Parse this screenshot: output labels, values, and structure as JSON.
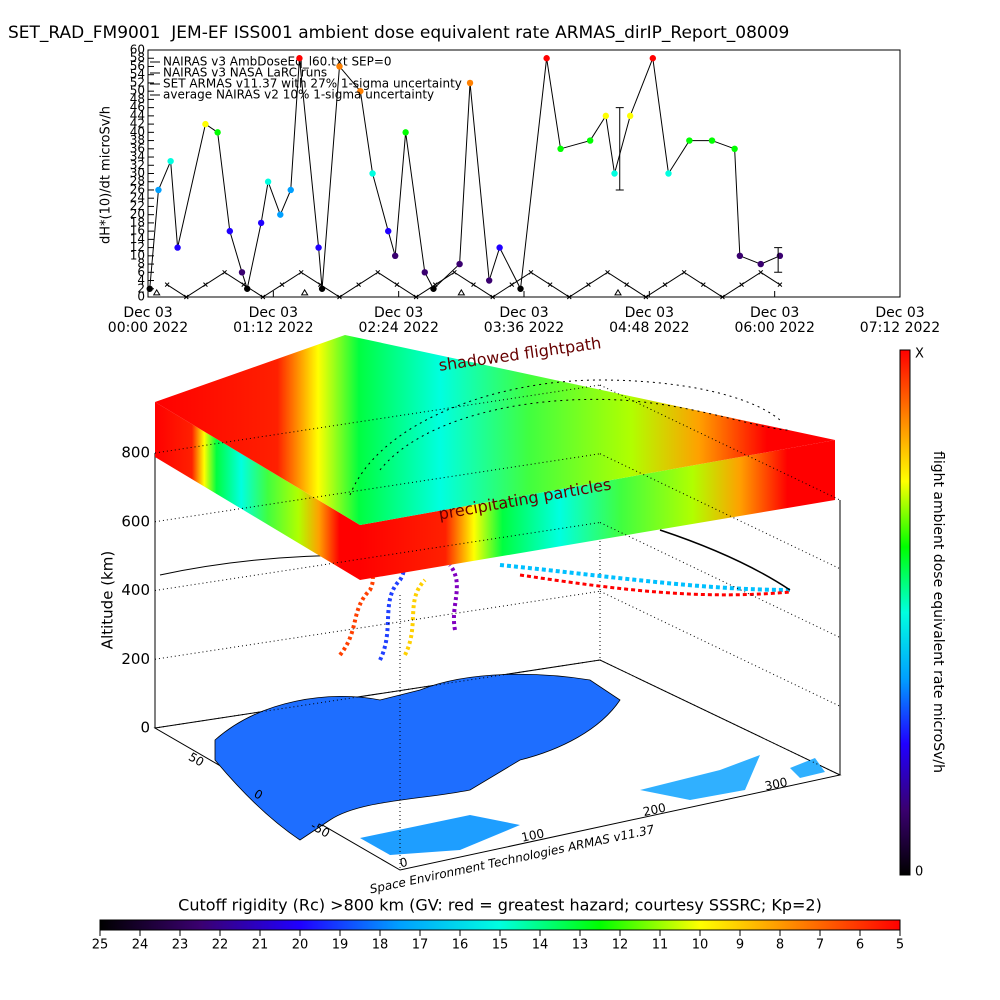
{
  "chart_data": [
    {
      "type": "line",
      "title": "SET_RAD_FM9001  JEM-EF ISS001 ambient dose equivalent rate ARMAS_dirIP_Report_08009",
      "ylabel": "dH*(10)/dt microSv/h",
      "xlim": [
        "2022-12-03T00:00",
        "2022-12-03T07:12"
      ],
      "xticks": [
        {
          "value": "2022-12-03T00:00",
          "label": "Dec 03\n00:00 2022"
        },
        {
          "value": "2022-12-03T01:12",
          "label": "Dec 03\n01:12 2022"
        },
        {
          "value": "2022-12-03T02:24",
          "label": "Dec 03\n02:24 2022"
        },
        {
          "value": "2022-12-03T03:36",
          "label": "Dec 03\n03:36 2022"
        },
        {
          "value": "2022-12-03T04:48",
          "label": "Dec 03\n04:48 2022"
        },
        {
          "value": "2022-12-03T06:00",
          "label": "Dec 03\n06:00 2022"
        },
        {
          "value": "2022-12-03T07:12",
          "label": "Dec 03\n07:12 2022"
        }
      ],
      "ylim": [
        0,
        60
      ],
      "yticks": [
        0,
        2,
        4,
        6,
        8,
        10,
        12,
        14,
        16,
        18,
        20,
        22,
        24,
        26,
        28,
        30,
        32,
        34,
        36,
        38,
        40,
        42,
        44,
        46,
        48,
        50,
        52,
        54,
        56,
        58,
        60
      ],
      "legend": "upper left",
      "colormap": [
        "#000000",
        "#3a0070",
        "#2000ff",
        "#00a0ff",
        "#00ffe0",
        "#00ff00",
        "#ffff00",
        "#ff8000",
        "#ff0000"
      ],
      "series": [
        {
          "name": "NAIRAS v3 AmbDoseEq_l60.txt SEP=0",
          "color": "#000000",
          "marker": "cross",
          "line": true,
          "x": [
            "2022-12-03T00:11",
            "2022-12-03T00:22",
            "2022-12-03T00:33",
            "2022-12-03T00:44",
            "2022-12-03T00:55",
            "2022-12-03T01:06",
            "2022-12-03T01:17",
            "2022-12-03T01:28",
            "2022-12-03T01:39",
            "2022-12-03T01:50",
            "2022-12-03T02:01",
            "2022-12-03T02:12",
            "2022-12-03T02:23",
            "2022-12-03T02:34",
            "2022-12-03T02:45",
            "2022-12-03T02:56",
            "2022-12-03T03:07",
            "2022-12-03T03:18",
            "2022-12-03T03:29",
            "2022-12-03T03:40",
            "2022-12-03T03:51",
            "2022-12-03T04:02",
            "2022-12-03T04:13",
            "2022-12-03T04:24",
            "2022-12-03T04:35",
            "2022-12-03T04:46",
            "2022-12-03T04:57",
            "2022-12-03T05:08",
            "2022-12-03T05:19",
            "2022-12-03T05:30",
            "2022-12-03T05:41",
            "2022-12-03T05:52",
            "2022-12-03T06:03"
          ],
          "values": [
            3,
            0,
            3,
            6,
            3,
            0,
            3,
            6,
            3,
            0,
            3,
            6,
            3,
            0,
            3,
            6,
            3,
            0,
            3,
            6,
            3,
            0,
            3,
            6,
            3,
            0,
            3,
            6,
            3,
            0,
            3,
            6,
            3
          ]
        },
        {
          "name": "NAIRAS v3 NASA LaRC runs",
          "color": "#000000",
          "marker": "triangle",
          "line": false,
          "x": [
            "2022-12-03T00:05",
            "2022-12-03T01:30",
            "2022-12-03T03:00",
            "2022-12-03T04:30"
          ],
          "values": [
            1,
            1,
            1,
            1
          ]
        },
        {
          "name": "SET ARMAS v11.37 with 27% 1-sigma uncertainty",
          "color": "#000000",
          "marker": "dot",
          "line": true,
          "x": [
            "2022-12-03T00:01",
            "2022-12-03T00:06",
            "2022-12-03T00:13",
            "2022-12-03T00:17",
            "2022-12-03T00:33",
            "2022-12-03T00:40",
            "2022-12-03T00:47",
            "2022-12-03T00:54",
            "2022-12-03T00:57",
            "2022-12-03T01:05",
            "2022-12-03T01:09",
            "2022-12-03T01:16",
            "2022-12-03T01:22",
            "2022-12-03T01:27",
            "2022-12-03T01:38",
            "2022-12-03T01:40",
            "2022-12-03T01:50",
            "2022-12-03T02:02",
            "2022-12-03T02:09",
            "2022-12-03T02:18",
            "2022-12-03T02:22",
            "2022-12-03T02:28",
            "2022-12-03T02:39",
            "2022-12-03T02:44",
            "2022-12-03T02:59",
            "2022-12-03T03:05",
            "2022-12-03T03:16",
            "2022-12-03T03:22",
            "2022-12-03T03:34",
            "2022-12-03T03:49",
            "2022-12-03T03:57",
            "2022-12-03T04:14",
            "2022-12-03T04:23",
            "2022-12-03T04:28",
            "2022-12-03T04:37",
            "2022-12-03T04:50",
            "2022-12-03T04:59",
            "2022-12-03T05:11",
            "2022-12-03T05:24",
            "2022-12-03T05:37",
            "2022-12-03T05:40",
            "2022-12-03T05:52",
            "2022-12-03T06:03"
          ],
          "values": [
            2,
            26,
            33,
            12,
            42,
            40,
            16,
            6,
            2,
            18,
            28,
            20,
            26,
            58,
            12,
            2,
            56,
            50,
            30,
            16,
            10,
            40,
            6,
            2,
            8,
            52,
            4,
            12,
            2,
            58,
            36,
            38,
            44,
            30,
            44,
            58,
            30,
            38,
            38,
            36,
            10,
            8,
            10
          ]
        },
        {
          "name": "average NAIRAS v2 10% 1-sigma uncertainty",
          "color": "#000000",
          "marker": "errorbar",
          "line": false,
          "x": [
            "2022-12-03T04:31",
            "2022-12-03T06:02"
          ],
          "values": [
            36,
            9
          ],
          "errors": [
            10,
            3
          ]
        }
      ]
    },
    {
      "type": "scene3d",
      "zlabel": "Altitude (km)",
      "zlim": [
        0,
        800
      ],
      "zticks": [
        0,
        200,
        400,
        600,
        800
      ],
      "xticks": [
        0,
        100,
        200,
        300
      ],
      "yticks": [
        -50,
        0,
        50
      ],
      "annotations": [
        "shadowed flightpath",
        "precipitating particles"
      ],
      "footer": "Space Environment Technologies ARMAS v11.37",
      "colorbar": {
        "label": "flight ambient dose equivalent rate microSv/h",
        "top_label": "X",
        "bottom_label": 0
      }
    },
    {
      "type": "colorbar",
      "title": "Cutoff rigidity (Rc) >800 km (GV: red = greatest hazard; courtesy SSSRC; Kp=2)",
      "lim": [
        25,
        5
      ],
      "ticks": [
        25,
        24,
        23,
        22,
        21,
        20,
        19,
        18,
        17,
        16,
        15,
        14,
        13,
        12,
        11,
        10,
        9,
        8,
        7,
        6,
        5
      ]
    }
  ]
}
